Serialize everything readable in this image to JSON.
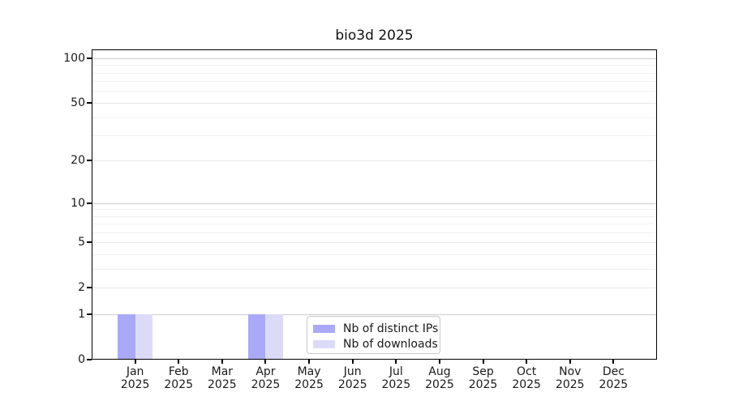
{
  "chart_data": {
    "type": "bar",
    "title": "bio3d 2025",
    "categories": [
      "Jan",
      "Feb",
      "Mar",
      "Apr",
      "May",
      "Jun",
      "Jul",
      "Aug",
      "Sep",
      "Oct",
      "Nov",
      "Dec"
    ],
    "category_year": "2025",
    "series": [
      {
        "name": "Nb of distinct IPs",
        "color": "#a9a9f7",
        "values": [
          1,
          0,
          0,
          1,
          0,
          0,
          0,
          0,
          0,
          0,
          0,
          0
        ]
      },
      {
        "name": "Nb of downloads",
        "color": "#dbdbf8",
        "values": [
          1,
          0,
          0,
          1,
          0,
          0,
          0,
          0,
          0,
          0,
          0,
          0
        ]
      }
    ],
    "xlabel": "",
    "ylabel": "",
    "yscale": "log1p",
    "ylim": [
      0,
      114
    ],
    "yticks": [
      0,
      1,
      2,
      5,
      10,
      20,
      50,
      100
    ],
    "mid_yticks": [
      2,
      5,
      20,
      50
    ],
    "minor_yticks": [
      3,
      4,
      6,
      7,
      8,
      9,
      30,
      40,
      60,
      70,
      80,
      90
    ],
    "grid": "horizontal",
    "legend": {
      "position": "lower-center-inside",
      "labels": [
        "Nb of distinct IPs",
        "Nb of downloads"
      ]
    },
    "colors": {
      "grid_major": "#cccccc",
      "grid_mid": "#e8e8e8",
      "grid_minor": "#f1f1f1",
      "axis": "#000000",
      "text": "#1a1a1a",
      "legend_border": "#c8c8c8",
      "background": "#ffffff"
    }
  }
}
